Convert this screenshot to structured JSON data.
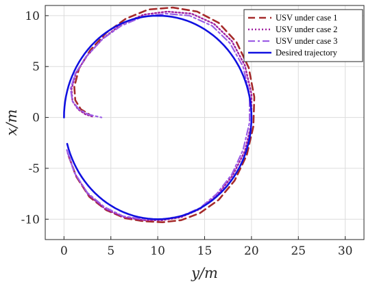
{
  "chart_data": {
    "type": "line",
    "xlabel": "y/m",
    "ylabel": "x/m",
    "xlim": [
      -2,
      32
    ],
    "ylim": [
      -12,
      11
    ],
    "x_ticks": [
      0,
      5,
      10,
      15,
      20,
      25,
      30
    ],
    "y_ticks": [
      -10,
      -5,
      0,
      5,
      10
    ],
    "x_tick_labels": [
      "0",
      "5",
      "10",
      "15",
      "20",
      "25",
      "30"
    ],
    "y_tick_labels": [
      "-10",
      "-5",
      "0",
      "5",
      "10"
    ],
    "grid": true,
    "legend_position": "top-right",
    "series": [
      {
        "name": "USV under case 1",
        "style": "dashed",
        "color": "#a52a2a",
        "points": [
          [
            0.5,
            -3.8
          ],
          [
            1.3,
            -5.8
          ],
          [
            2.7,
            -7.8
          ],
          [
            4.5,
            -9.1
          ],
          [
            6.5,
            -9.9
          ],
          [
            8.5,
            -10.2
          ],
          [
            10.5,
            -10.3
          ],
          [
            12.5,
            -10.1
          ],
          [
            14.5,
            -9.4
          ],
          [
            16.5,
            -8.1
          ],
          [
            18.2,
            -6.2
          ],
          [
            19.5,
            -3.7
          ],
          [
            20.2,
            -0.9
          ],
          [
            20.3,
            2.0
          ],
          [
            19.7,
            4.9
          ],
          [
            18.4,
            7.4
          ],
          [
            16.5,
            9.3
          ],
          [
            14.2,
            10.4
          ],
          [
            11.6,
            10.8
          ],
          [
            9.0,
            10.6
          ],
          [
            6.6,
            9.7
          ],
          [
            4.5,
            8.3
          ],
          [
            2.8,
            6.6
          ],
          [
            1.6,
            4.8
          ],
          [
            1.1,
            3.0
          ],
          [
            1.2,
            1.7
          ],
          [
            1.8,
            0.8
          ],
          [
            2.7,
            0.3
          ]
        ]
      },
      {
        "name": "USV under case 2",
        "style": "dotted",
        "color": "#a020a0",
        "points": [
          [
            0.4,
            -3.5
          ],
          [
            1.2,
            -5.6
          ],
          [
            2.6,
            -7.6
          ],
          [
            4.4,
            -9.0
          ],
          [
            6.4,
            -9.8
          ],
          [
            8.5,
            -10.1
          ],
          [
            10.5,
            -10.1
          ],
          [
            12.5,
            -9.8
          ],
          [
            14.5,
            -9.0
          ],
          [
            16.4,
            -7.6
          ],
          [
            18.0,
            -5.7
          ],
          [
            19.3,
            -3.3
          ],
          [
            20.0,
            -0.6
          ],
          [
            20.0,
            2.3
          ],
          [
            19.3,
            5.1
          ],
          [
            17.9,
            7.5
          ],
          [
            16.0,
            9.2
          ],
          [
            13.6,
            10.2
          ],
          [
            11.0,
            10.4
          ],
          [
            8.5,
            10.1
          ],
          [
            6.2,
            9.2
          ],
          [
            4.2,
            7.8
          ],
          [
            2.5,
            6.1
          ],
          [
            1.3,
            4.4
          ],
          [
            0.8,
            2.8
          ],
          [
            0.9,
            1.6
          ],
          [
            1.5,
            0.8
          ],
          [
            2.3,
            0.3
          ],
          [
            3.0,
            0.1
          ]
        ]
      },
      {
        "name": "USV under case 3",
        "style": "dashdot",
        "color": "#9b5de5",
        "points": [
          [
            0.3,
            -3.2
          ],
          [
            1.1,
            -5.4
          ],
          [
            2.5,
            -7.4
          ],
          [
            4.3,
            -8.8
          ],
          [
            6.3,
            -9.7
          ],
          [
            8.5,
            -10.0
          ],
          [
            10.5,
            -10.0
          ],
          [
            12.5,
            -9.7
          ],
          [
            14.5,
            -8.9
          ],
          [
            16.3,
            -7.5
          ],
          [
            17.9,
            -5.6
          ],
          [
            19.1,
            -3.2
          ],
          [
            19.8,
            -0.5
          ],
          [
            19.8,
            2.3
          ],
          [
            19.1,
            5.0
          ],
          [
            17.7,
            7.3
          ],
          [
            15.8,
            9.0
          ],
          [
            13.4,
            10.0
          ],
          [
            10.9,
            10.2
          ],
          [
            8.4,
            9.9
          ],
          [
            6.1,
            9.0
          ],
          [
            4.1,
            7.7
          ],
          [
            2.4,
            6.0
          ],
          [
            1.2,
            4.3
          ],
          [
            0.7,
            2.8
          ],
          [
            0.9,
            1.6
          ],
          [
            1.6,
            0.8
          ],
          [
            2.6,
            0.3
          ],
          [
            3.5,
            0.1
          ],
          [
            4.0,
            0.0
          ]
        ]
      },
      {
        "name": "Desired trajectory",
        "style": "solid",
        "color": "#1010e0",
        "points": "circle"
      }
    ]
  }
}
